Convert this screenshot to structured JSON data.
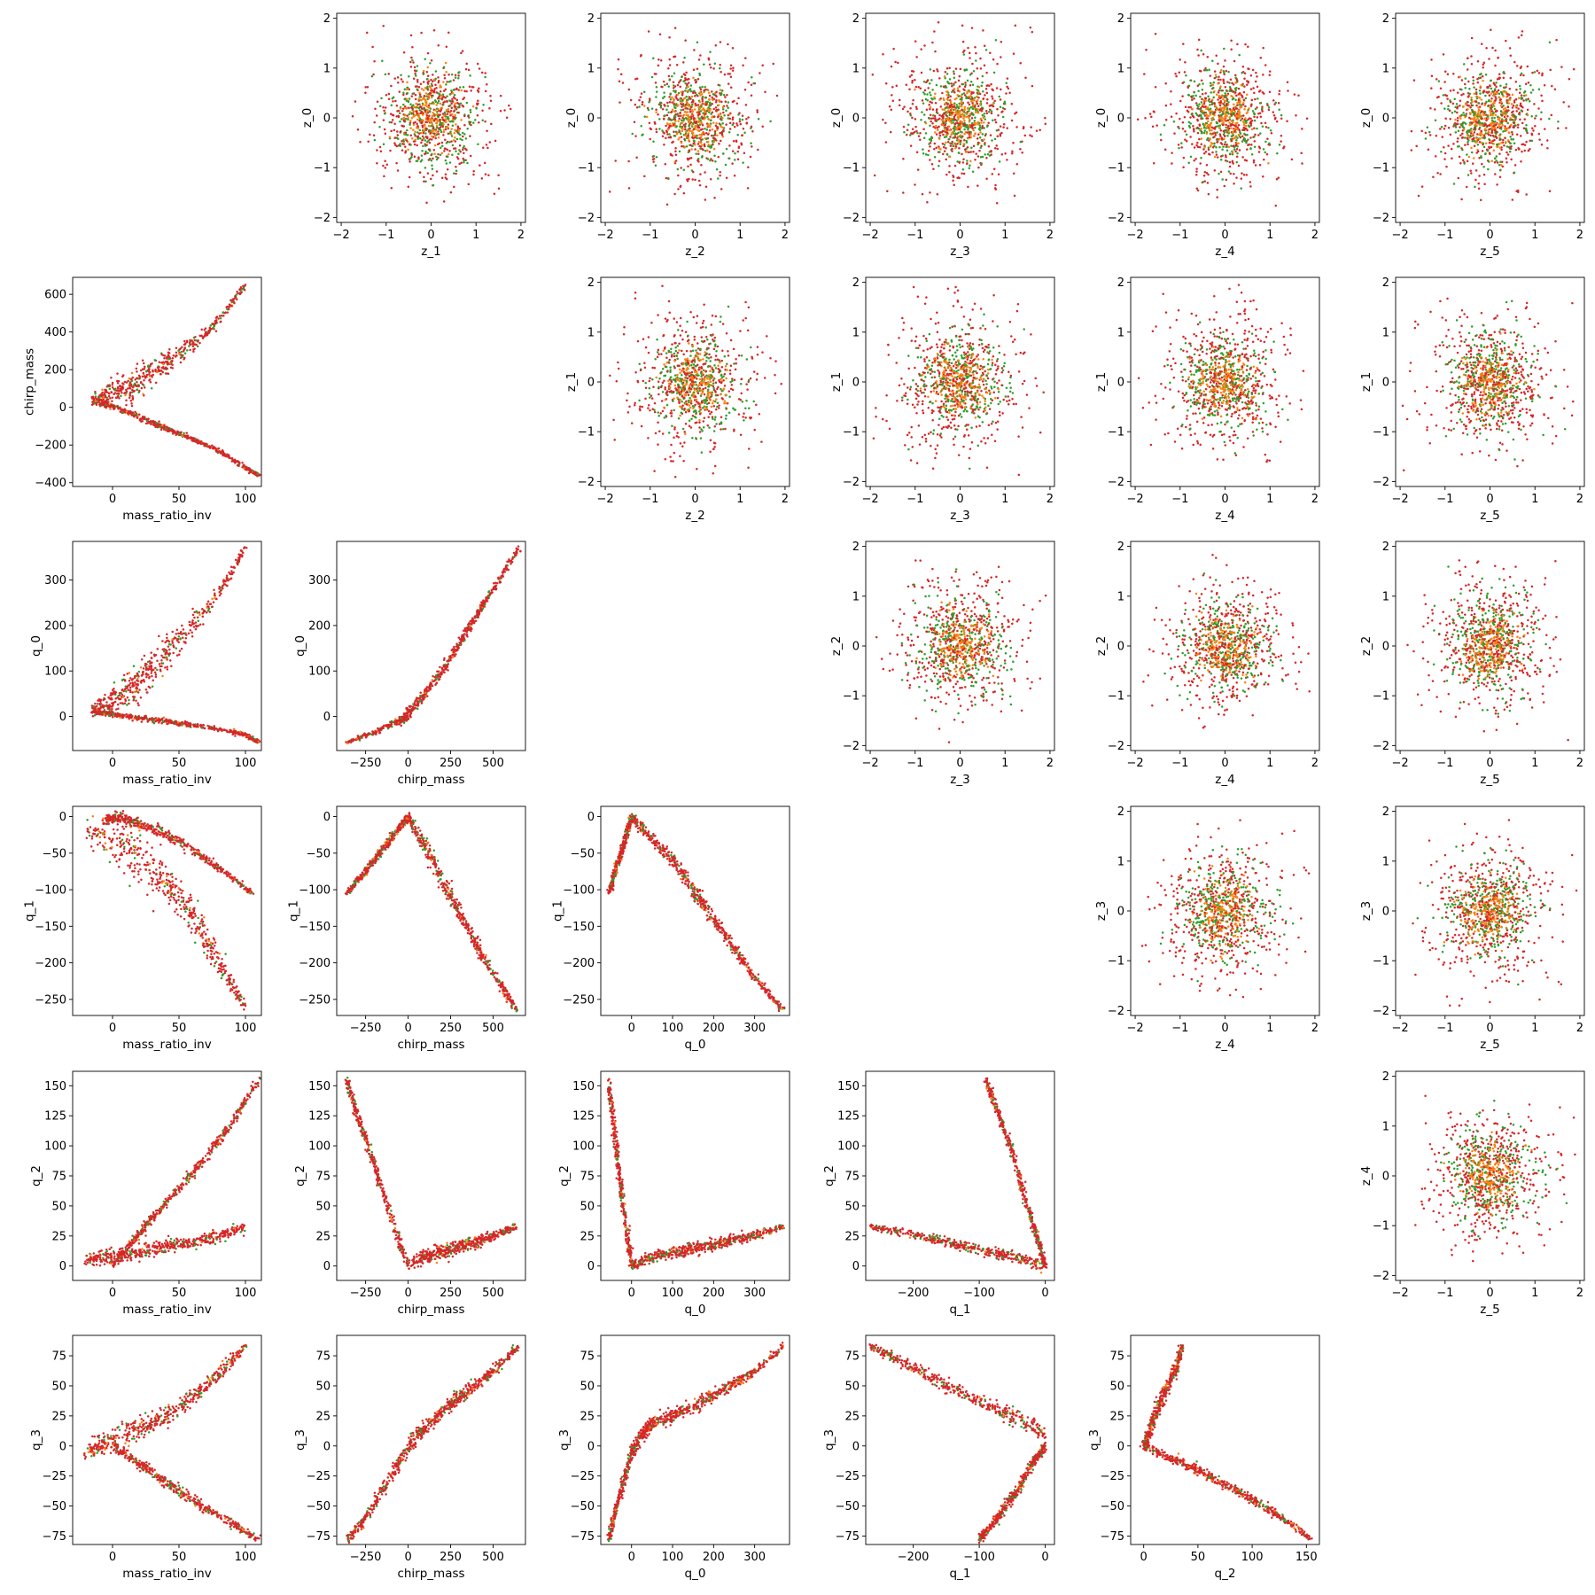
{
  "chart_data": {
    "type": "scatter",
    "layout": "pair-grid",
    "colors": {
      "cloud_outer": "#d62728",
      "cloud_mid": "#2ca02c",
      "cloud_inner": "#ff7f0e",
      "axis": "#000000",
      "background": "#ffffff"
    },
    "grid": false,
    "legend": "none",
    "variables": {
      "mass_ratio_inv": {
        "label": "mass_ratio_inv",
        "range": [
          -30,
          112
        ],
        "ticks": [
          0,
          50,
          100
        ]
      },
      "chirp_mass": {
        "label": "chirp_mass",
        "range": [
          -420,
          690
        ],
        "ticks": [
          -400,
          -200,
          0,
          200,
          400,
          600
        ],
        "ticks_x": [
          -250,
          0,
          250,
          500
        ]
      },
      "q_0": {
        "label": "q_0",
        "range": [
          -75,
          385
        ],
        "ticks": [
          0,
          100,
          200,
          300
        ]
      },
      "q_1": {
        "label": "q_1",
        "range": [
          -272,
          14
        ],
        "ticks": [
          -250,
          -200,
          -150,
          -100,
          -50,
          0
        ],
        "ticks_x": [
          -200,
          -100,
          0
        ]
      },
      "q_2": {
        "label": "q_2",
        "range": [
          -12,
          162
        ],
        "ticks": [
          0,
          25,
          50,
          75,
          100,
          125,
          150
        ],
        "ticks_x": [
          0,
          50,
          100,
          150
        ]
      },
      "q_3": {
        "label": "q_3",
        "range": [
          -82,
          92
        ],
        "ticks": [
          -75,
          -50,
          -25,
          0,
          25,
          50,
          75
        ]
      },
      "z": {
        "range": [
          -2.1,
          2.1
        ],
        "ticks": [
          -2,
          -1,
          0,
          1,
          2
        ]
      }
    },
    "lower_panels": [
      {
        "x": "mass_ratio_inv",
        "y": "chirp_mass",
        "branches": [
          {
            "x": [
              -15,
              0,
              15,
              30,
              50,
              75,
              100
            ],
            "y": [
              40,
              70,
              120,
              190,
              280,
              420,
              650
            ],
            "spread": [
              30,
              50,
              70,
              60,
              40,
              20,
              10
            ]
          },
          {
            "x": [
              -15,
              0,
              20,
              40,
              60,
              80,
              100,
              110
            ],
            "y": [
              30,
              5,
              -50,
              -110,
              -170,
              -230,
              -320,
              -360
            ],
            "spread": [
              8,
              10,
              12,
              10,
              10,
              8,
              6,
              5
            ]
          }
        ]
      },
      {
        "x": "mass_ratio_inv",
        "y": "q_0",
        "branches": [
          {
            "x": [
              -15,
              0,
              15,
              30,
              50,
              75,
              100
            ],
            "y": [
              15,
              35,
              65,
              110,
              170,
              250,
              370
            ],
            "spread": [
              15,
              25,
              35,
              35,
              25,
              15,
              8
            ]
          },
          {
            "x": [
              -15,
              0,
              25,
              50,
              75,
              100,
              110
            ],
            "y": [
              10,
              5,
              -5,
              -15,
              -25,
              -40,
              -57
            ],
            "spread": [
              4,
              4,
              5,
              5,
              4,
              4,
              3
            ]
          }
        ]
      },
      {
        "x": "chirp_mass",
        "y": "q_0",
        "branches": [
          {
            "x": [
              -360,
              -200,
              -50,
              0,
              100,
              200,
              300,
              400,
              500,
              650
            ],
            "y": [
              -57,
              -35,
              -10,
              5,
              50,
              100,
              160,
              220,
              280,
              370
            ],
            "spread": [
              3,
              4,
              6,
              10,
              10,
              8,
              8,
              8,
              6,
              4
            ]
          }
        ]
      },
      {
        "x": "mass_ratio_inv",
        "y": "q_1",
        "branches": [
          {
            "x": [
              -20,
              0,
              20,
              40,
              60,
              80,
              100
            ],
            "y": [
              -20,
              -30,
              -55,
              -90,
              -135,
              -200,
              -260
            ],
            "spread": [
              15,
              25,
              30,
              25,
              20,
              15,
              8
            ]
          },
          {
            "x": [
              -5,
              5,
              20,
              40,
              60,
              80,
              105
            ],
            "y": [
              -5,
              0,
              -10,
              -25,
              -45,
              -70,
              -105
            ],
            "spread": [
              4,
              5,
              6,
              6,
              5,
              4,
              3
            ]
          }
        ]
      },
      {
        "x": "chirp_mass",
        "y": "q_1",
        "branches": [
          {
            "x": [
              0,
              100,
              200,
              300,
              400,
              500,
              640
            ],
            "y": [
              0,
              -40,
              -85,
              -130,
              -175,
              -215,
              -265
            ],
            "spread": [
              6,
              10,
              12,
              10,
              8,
              6,
              4
            ]
          },
          {
            "x": [
              -360,
              -250,
              -150,
              -50,
              0
            ],
            "y": [
              -105,
              -75,
              -45,
              -15,
              0
            ],
            "spread": [
              3,
              4,
              4,
              4,
              3
            ]
          }
        ]
      },
      {
        "x": "q_0",
        "y": "q_1",
        "branches": [
          {
            "x": [
              0,
              50,
              100,
              150,
              200,
              250,
              300,
              370
            ],
            "y": [
              0,
              -30,
              -60,
              -100,
              -140,
              -180,
              -220,
              -265
            ],
            "spread": [
              6,
              8,
              8,
              8,
              8,
              6,
              5,
              4
            ]
          },
          {
            "x": [
              -55,
              -40,
              -20,
              0
            ],
            "y": [
              -105,
              -75,
              -40,
              0
            ],
            "spread": [
              3,
              4,
              4,
              3
            ]
          }
        ]
      },
      {
        "x": "mass_ratio_inv",
        "y": "q_2",
        "branches": [
          {
            "x": [
              -20,
              0,
              20,
              40,
              60,
              80,
              100
            ],
            "y": [
              5,
              8,
              12,
              16,
              20,
              25,
              33
            ],
            "spread": [
              4,
              5,
              5,
              5,
              4,
              4,
              3
            ]
          },
          {
            "x": [
              0,
              15,
              30,
              50,
              70,
              90,
              110
            ],
            "y": [
              0,
              20,
              40,
              65,
              90,
              120,
              155
            ],
            "spread": [
              3,
              3,
              3,
              3,
              3,
              3,
              2
            ]
          }
        ]
      },
      {
        "x": "chirp_mass",
        "y": "q_2",
        "branches": [
          {
            "x": [
              0,
              100,
              200,
              300,
              400,
              500,
              640
            ],
            "y": [
              0,
              8,
              12,
              16,
              20,
              25,
              33
            ],
            "spread": [
              4,
              6,
              5,
              5,
              4,
              3,
              2
            ]
          },
          {
            "x": [
              -360,
              -300,
              -200,
              -100,
              0
            ],
            "y": [
              155,
              125,
              85,
              40,
              0
            ],
            "spread": [
              3,
              4,
              4,
              4,
              3
            ]
          }
        ]
      },
      {
        "x": "q_0",
        "y": "q_2",
        "branches": [
          {
            "x": [
              0,
              50,
              100,
              150,
              200,
              250,
              300,
              370
            ],
            "y": [
              0,
              7,
              11,
              15,
              18,
              22,
              26,
              33
            ],
            "spread": [
              3,
              4,
              4,
              4,
              4,
              3,
              3,
              2
            ]
          },
          {
            "x": [
              -55,
              -45,
              -30,
              -15,
              0
            ],
            "y": [
              155,
              120,
              75,
              35,
              0
            ],
            "spread": [
              3,
              4,
              4,
              4,
              3
            ]
          }
        ]
      },
      {
        "x": "q_1",
        "y": "q_2",
        "branches": [
          {
            "x": [
              0,
              -50,
              -100,
              -150,
              -200,
              -265
            ],
            "y": [
              0,
              8,
              14,
              20,
              26,
              33
            ],
            "spread": [
              4,
              4,
              4,
              3,
              3,
              2
            ]
          },
          {
            "x": [
              0,
              -10,
              -30,
              -50,
              -70,
              -90
            ],
            "y": [
              0,
              20,
              55,
              95,
              125,
              155
            ],
            "spread": [
              3,
              4,
              4,
              4,
              3,
              3
            ]
          }
        ]
      },
      {
        "x": "mass_ratio_inv",
        "y": "q_3",
        "branches": [
          {
            "x": [
              -20,
              0,
              20,
              40,
              60,
              80,
              100
            ],
            "y": [
              -5,
              5,
              15,
              25,
              40,
              60,
              83
            ],
            "spread": [
              6,
              8,
              8,
              7,
              6,
              5,
              3
            ]
          },
          {
            "x": [
              0,
              20,
              40,
              60,
              80,
              110
            ],
            "y": [
              0,
              -15,
              -30,
              -45,
              -58,
              -78
            ],
            "spread": [
              3,
              4,
              4,
              4,
              3,
              2
            ]
          }
        ]
      },
      {
        "x": "chirp_mass",
        "y": "q_3",
        "branches": [
          {
            "x": [
              -360,
              -250,
              -100,
              0,
              100,
              200,
              300,
              400,
              500,
              650
            ],
            "y": [
              -78,
              -60,
              -25,
              0,
              15,
              28,
              40,
              50,
              62,
              83
            ],
            "spread": [
              3,
              4,
              5,
              6,
              5,
              5,
              5,
              4,
              4,
              3
            ]
          }
        ]
      },
      {
        "x": "q_0",
        "y": "q_3",
        "branches": [
          {
            "x": [
              -55,
              -40,
              -20,
              0,
              25,
              50,
              100,
              150,
              200,
              250,
              300,
              370
            ],
            "y": [
              -78,
              -55,
              -30,
              -5,
              10,
              18,
              25,
              33,
              42,
              52,
              62,
              83
            ],
            "spread": [
              3,
              4,
              5,
              5,
              5,
              5,
              5,
              4,
              4,
              4,
              3,
              2
            ]
          }
        ]
      },
      {
        "x": "q_1",
        "y": "q_3",
        "branches": [
          {
            "x": [
              -265,
              -200,
              -150,
              -100,
              -50,
              0
            ],
            "y": [
              83,
              65,
              50,
              38,
              25,
              10
            ],
            "spread": [
              3,
              4,
              5,
              5,
              6,
              6
            ]
          },
          {
            "x": [
              0,
              -20,
              -40,
              -60,
              -80,
              -100
            ],
            "y": [
              0,
              -15,
              -35,
              -50,
              -65,
              -78
            ],
            "spread": [
              3,
              4,
              4,
              4,
              3,
              3
            ]
          }
        ]
      },
      {
        "x": "q_2",
        "y": "q_3",
        "branches": [
          {
            "x": [
              0,
              5,
              10,
              20,
              30,
              35
            ],
            "y": [
              0,
              10,
              25,
              45,
              65,
              83
            ],
            "spread": [
              4,
              5,
              6,
              6,
              5,
              4
            ]
          },
          {
            "x": [
              0,
              25,
              50,
              75,
              100,
              125,
              155
            ],
            "y": [
              0,
              -10,
              -20,
              -32,
              -45,
              -58,
              -78
            ],
            "spread": [
              3,
              3,
              3,
              3,
              3,
              3,
              2
            ]
          }
        ]
      }
    ],
    "upper_panels": [
      {
        "x": "z_1",
        "y": "z_0"
      },
      {
        "x": "z_2",
        "y": "z_0"
      },
      {
        "x": "z_3",
        "y": "z_0"
      },
      {
        "x": "z_4",
        "y": "z_0"
      },
      {
        "x": "z_5",
        "y": "z_0"
      },
      {
        "x": "z_2",
        "y": "z_1"
      },
      {
        "x": "z_3",
        "y": "z_1"
      },
      {
        "x": "z_4",
        "y": "z_1"
      },
      {
        "x": "z_5",
        "y": "z_1"
      },
      {
        "x": "z_3",
        "y": "z_2"
      },
      {
        "x": "z_4",
        "y": "z_2"
      },
      {
        "x": "z_5",
        "y": "z_2"
      },
      {
        "x": "z_4",
        "y": "z_3"
      },
      {
        "x": "z_5",
        "y": "z_3"
      },
      {
        "x": "z_5",
        "y": "z_4"
      }
    ],
    "upper_cloud": {
      "shape": "gaussian",
      "center": [
        0,
        0
      ],
      "layers": [
        {
          "color_key": "cloud_outer",
          "sigma": 0.75,
          "count": 900
        },
        {
          "color_key": "cloud_mid",
          "sigma": 0.5,
          "count": 650
        },
        {
          "color_key": "cloud_inner",
          "sigma": 0.32,
          "count": 420
        },
        {
          "color_key": "cloud_outer",
          "sigma": 0.45,
          "count": 260
        }
      ]
    }
  }
}
